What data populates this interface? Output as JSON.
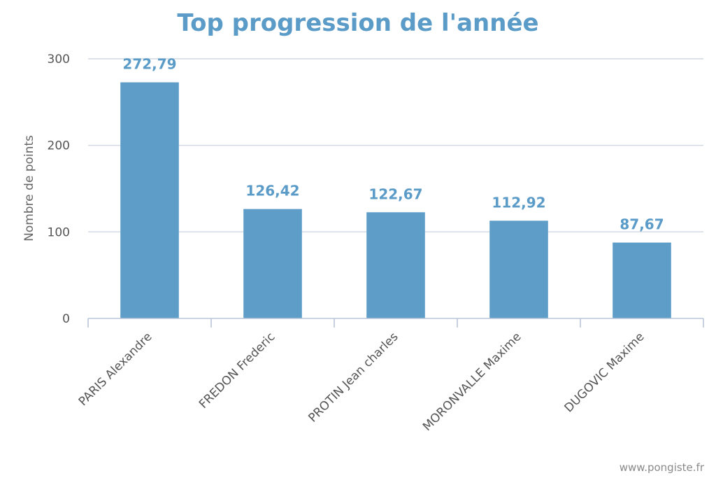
{
  "chart_data": {
    "type": "bar",
    "title": "Top progression de l'année",
    "xlabel": "",
    "ylabel": "Nombre de points",
    "categories": [
      "PARIS Alexandre",
      "FREDON Frederic",
      "PROTIN Jean charles",
      "MORONVALLE Maxime",
      "DUGOVIC Maxime"
    ],
    "values": [
      272.79,
      126.42,
      122.67,
      112.92,
      87.67
    ],
    "data_labels": [
      "272,79",
      "126,42",
      "122,67",
      "112,92",
      "87,67"
    ],
    "ylim": [
      0,
      300
    ],
    "yticks": [
      0,
      100,
      200,
      300
    ],
    "ytick_labels": [
      "0",
      "100",
      "200",
      "300"
    ],
    "grid": true,
    "legend": "none",
    "bar_color": "#5f9dc9",
    "title_color": "#5b9bc8"
  },
  "credit": "www.pongiste.fr"
}
